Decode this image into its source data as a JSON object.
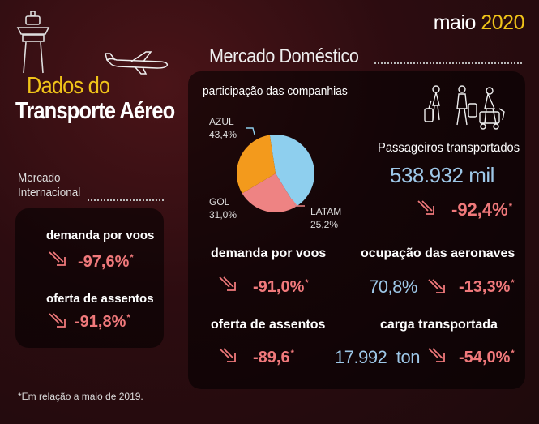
{
  "header": {
    "month": "maio",
    "year": "2020"
  },
  "title": {
    "line1": "Dados do",
    "line2": "Transporte Aéreo"
  },
  "internacional": {
    "label_line1": "Mercado",
    "label_line2": "Internacional",
    "demanda_label": "demanda por voos",
    "demanda_value": "-97,6%",
    "oferta_label": "oferta de assentos",
    "oferta_value": "-91,8%"
  },
  "domestico": {
    "title": "Mercado Doméstico",
    "share_title": "participação das companhias",
    "demanda_label": "demanda por voos",
    "demanda_value": "-91,0%",
    "oferta_label": "oferta de assentos",
    "oferta_value": "-89,6",
    "passageiros_label": "Passageiros transportados",
    "passageiros_value": "538.932 mil",
    "passageiros_change": "-92,4%",
    "ocupacao_label": "ocupação das aeronaves",
    "ocupacao_value": "70,8%",
    "ocupacao_change": "-13,3%",
    "carga_label": "carga transportada",
    "carga_value": "17.992",
    "carga_unit": "ton",
    "carga_change": "-54,0%"
  },
  "chart_data": {
    "type": "pie",
    "title": "participação das companhias",
    "slices": [
      {
        "name": "AZUL",
        "value": 43.4,
        "label": "43,4%",
        "color": "#8ecfee"
      },
      {
        "name": "LATAM",
        "value": 25.2,
        "label": "25,2%",
        "color": "#ee8383"
      },
      {
        "name": "GOL",
        "value": 31.0,
        "label": "31,0%",
        "color": "#f39a1c"
      }
    ]
  },
  "footnote": "*Em relação a maio de 2019.",
  "colors": {
    "accent": "#f0c419",
    "negative": "#f0797b",
    "neutral": "#9ec8e8"
  },
  "icons": [
    "control-tower-icon",
    "airplane-icon",
    "travelers-icon",
    "down-arrow-icon"
  ]
}
